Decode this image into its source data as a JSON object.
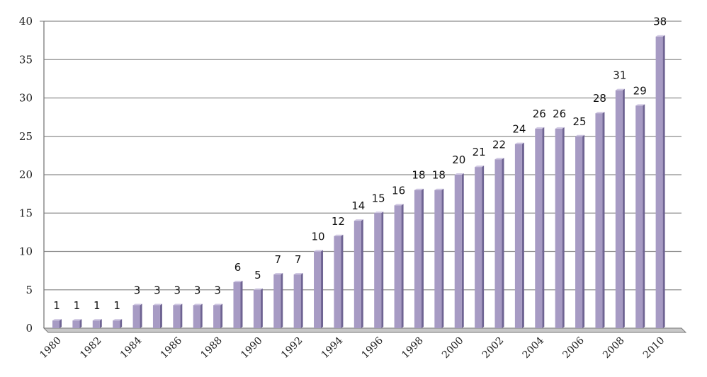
{
  "chart_data": {
    "type": "bar",
    "title": "",
    "xlabel": "",
    "ylabel": "",
    "ylim": [
      0,
      40
    ],
    "yticks": [
      0,
      5,
      10,
      15,
      20,
      25,
      30,
      35,
      40
    ],
    "grid": true,
    "legend": "none",
    "categories": [
      "1980",
      "1981",
      "1982",
      "1983",
      "1984",
      "1985",
      "1986",
      "1987",
      "1988",
      "1989",
      "1990",
      "1991",
      "1992",
      "1993",
      "1994",
      "1995",
      "1996",
      "1997",
      "1998",
      "1999",
      "2000",
      "2001",
      "2002",
      "2003",
      "2004",
      "2005",
      "2006",
      "2007",
      "2008",
      "2009",
      "2010"
    ],
    "x_tick_labels": [
      "1980",
      "1982",
      "1984",
      "1986",
      "1988",
      "1990",
      "1992",
      "1994",
      "1996",
      "1998",
      "2000",
      "2002",
      "2004",
      "2006",
      "2008",
      "2010"
    ],
    "values": [
      1,
      1,
      1,
      1,
      3,
      3,
      3,
      3,
      3,
      6,
      5,
      7,
      7,
      10,
      12,
      14,
      15,
      16,
      18,
      18,
      20,
      21,
      22,
      24,
      26,
      26,
      25,
      28,
      31,
      29,
      38
    ],
    "colors": {
      "bar_front": "#a79bc4",
      "bar_side": "#6f6493",
      "bar_top": "#cfc7e2",
      "grid": "#8c8c8c",
      "axis": "#7a7a7a",
      "floor": "#c8c8c8"
    }
  }
}
